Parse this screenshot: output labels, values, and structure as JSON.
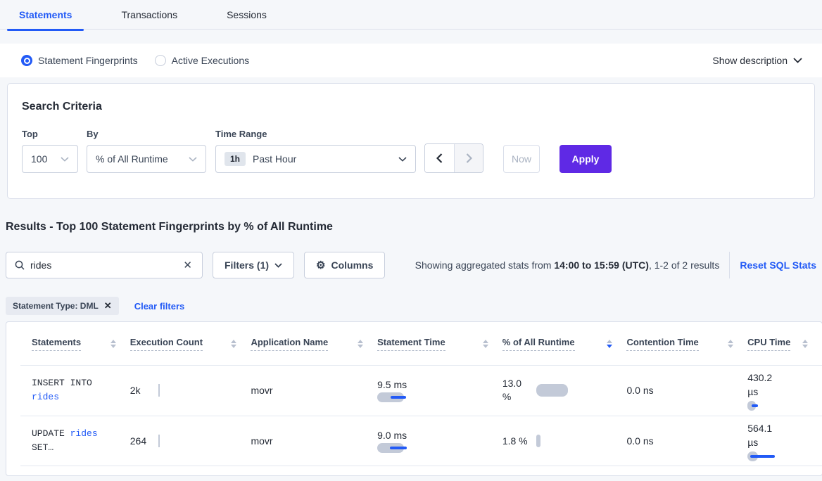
{
  "colors": {
    "accent": "#225af6",
    "purple": "#5f29e5",
    "bar_gray": "#c3cad8"
  },
  "tabs": {
    "items": [
      {
        "label": "Statements",
        "active": true
      },
      {
        "label": "Transactions",
        "active": false
      },
      {
        "label": "Sessions",
        "active": false
      }
    ]
  },
  "view_toggle": {
    "fingerprints_label": "Statement Fingerprints",
    "active_executions_label": "Active Executions",
    "show_description_label": "Show description"
  },
  "search_criteria": {
    "title": "Search Criteria",
    "top_label": "Top",
    "top_value": "100",
    "by_label": "By",
    "by_value": "% of All Runtime",
    "time_range_label": "Time Range",
    "time_badge": "1h",
    "time_value": "Past Hour",
    "now_label": "Now",
    "apply_label": "Apply"
  },
  "results": {
    "heading": "Results - Top 100 Statement Fingerprints by % of All Runtime",
    "search_value": "rides",
    "filters_label": "Filters (1)",
    "columns_label": "Columns",
    "stats_prefix": "Showing aggregated stats from ",
    "stats_bold": "14:00 to 15:59 (UTC)",
    "stats_suffix": ", 1-2 of 2 results",
    "reset_label": "Reset SQL Stats",
    "filter_pill": "Statement Type: DML",
    "clear_filters": "Clear filters"
  },
  "table": {
    "columns": [
      {
        "label": "Statements",
        "sorted": ""
      },
      {
        "label": "Execution Count",
        "sorted": ""
      },
      {
        "label": "Application Name",
        "sorted": ""
      },
      {
        "label": "Statement Time",
        "sorted": ""
      },
      {
        "label": "% of All Runtime",
        "sorted": "desc"
      },
      {
        "label": "Contention Time",
        "sorted": ""
      },
      {
        "label": "CPU Time",
        "sorted": ""
      }
    ],
    "rows": [
      {
        "line1_text": "INSERT INTO",
        "line1_link": "",
        "line2_text": "",
        "line2_link": "rides",
        "exec_count": "2k",
        "app": "movr",
        "stmt_time": "9.5 ms",
        "runtime": "13.0 %",
        "contention": "0.0 ns",
        "cpu": "430.2 µs",
        "bars": {
          "count": {
            "vbar": 18
          },
          "stmt": {
            "bar": 38,
            "line": 22,
            "line_start": 19
          },
          "runtime": {
            "bar": 45
          },
          "cpu": {
            "bar": 12,
            "line": 9,
            "line_start": 6
          }
        }
      },
      {
        "line1_text": "UPDATE ",
        "line1_link": "rides",
        "line2_text": "SET…",
        "line2_link": "",
        "exec_count": "264",
        "app": "movr",
        "stmt_time": "9.0 ms",
        "runtime": "1.8 %",
        "contention": "0.0 ns",
        "cpu": "564.1 µs",
        "bars": {
          "count": {
            "vbar": 18
          },
          "stmt": {
            "bar": 38,
            "line": 24,
            "line_start": 18
          },
          "runtime": {
            "bar": 6
          },
          "cpu": {
            "bar": 15,
            "line": 35,
            "line_start": 4
          }
        }
      }
    ]
  }
}
